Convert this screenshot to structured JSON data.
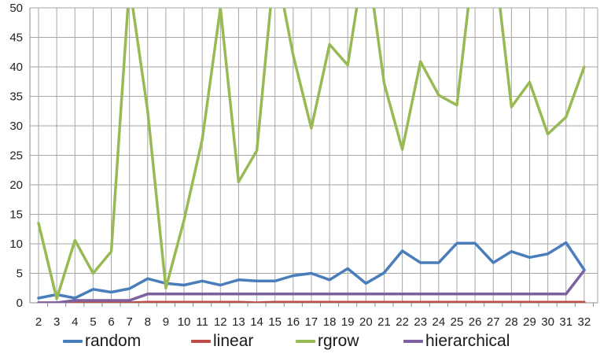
{
  "chart_data": {
    "type": "line",
    "ylim": [
      0,
      50
    ],
    "yticks": [
      "0",
      "5",
      "10",
      "15",
      "20",
      "25",
      "30",
      "35",
      "40",
      "45",
      "50"
    ],
    "x": [
      "2",
      "3",
      "4",
      "5",
      "6",
      "7",
      "8",
      "9",
      "10",
      "11",
      "12",
      "13",
      "14",
      "15",
      "16",
      "17",
      "18",
      "19",
      "20",
      "21",
      "22",
      "23",
      "24",
      "25",
      "26",
      "27",
      "28",
      "29",
      "30",
      "31",
      "32"
    ],
    "grid": "both",
    "legend_position": "bottom",
    "series": [
      {
        "name": "random",
        "color": "#4a7ebb",
        "values": [
          0.8,
          1.4,
          0.8,
          2.3,
          1.8,
          2.4,
          4.1,
          3.3,
          3.0,
          3.7,
          3.0,
          3.9,
          3.7,
          3.7,
          4.6,
          5.0,
          3.9,
          5.8,
          3.3,
          5.1,
          8.8,
          6.8,
          6.8,
          10.1,
          10.1,
          6.8,
          8.7,
          7.7,
          8.3,
          10.2,
          5.6
        ]
      },
      {
        "name": "linear",
        "color": "#be4b48",
        "values": [
          0,
          0,
          0,
          0,
          0,
          0,
          0.1,
          0.1,
          0.1,
          0.1,
          0.1,
          0.1,
          0,
          0.1,
          0.1,
          0.1,
          0.1,
          0.1,
          0.1,
          0.1,
          0.1,
          0.1,
          0.1,
          0.1,
          0.1,
          0.1,
          0.1,
          0.1,
          0.1,
          0.1,
          0.1
        ]
      },
      {
        "name": "rgrow",
        "color": "#98b954",
        "values": [
          13.5,
          0.7,
          10.6,
          5.0,
          8.7,
          54.0,
          32.5,
          2.5,
          14.0,
          27.7,
          50.0,
          20.5,
          25.8,
          58.0,
          42.0,
          29.6,
          43.8,
          40.3,
          60.0,
          37.2,
          26.0,
          40.9,
          35.2,
          33.5,
          60.0,
          60.0,
          33.2,
          37.4,
          28.6,
          31.5,
          40.0
        ]
      },
      {
        "name": "hierarchical",
        "color": "#7d60a0",
        "values": [
          0,
          0,
          0.4,
          0.4,
          0.4,
          0.4,
          1.5,
          1.5,
          1.5,
          1.5,
          1.5,
          1.5,
          1.5,
          1.5,
          1.5,
          1.5,
          1.5,
          1.5,
          1.5,
          1.5,
          1.5,
          1.5,
          1.5,
          1.5,
          1.5,
          1.5,
          1.5,
          1.5,
          1.5,
          1.5,
          5.5
        ]
      }
    ]
  }
}
